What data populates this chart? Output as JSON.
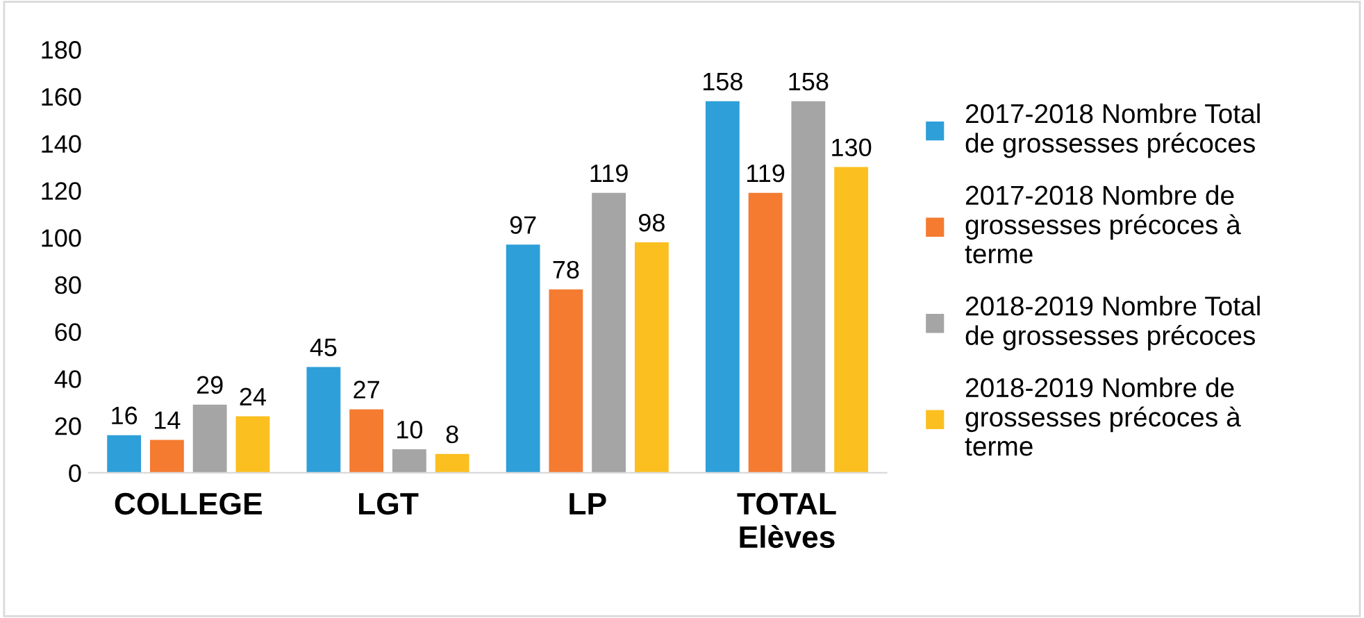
{
  "chart_data": {
    "type": "bar",
    "categories": [
      "COLLEGE",
      "LGT",
      "LP",
      "TOTAL\nElèves"
    ],
    "series": [
      {
        "name": "2017-2018 Nombre Total\nde grossesses précoces",
        "color": "#2e9fd8",
        "values": [
          16,
          45,
          97,
          158
        ]
      },
      {
        "name": "2017-2018 Nombre de\ngrossesses précoces à\nterme",
        "color": "#f47b30",
        "values": [
          14,
          27,
          78,
          119
        ]
      },
      {
        "name": "2018-2019 Nombre Total\nde grossesses précoces",
        "color": "#a5a5a5",
        "values": [
          29,
          10,
          119,
          158
        ]
      },
      {
        "name": "2018-2019 Nombre de\ngrossesses précoces à\nterme",
        "color": "#fbbf1f",
        "values": [
          24,
          8,
          98,
          130
        ]
      }
    ],
    "ylim": [
      0,
      180
    ],
    "yticks": [
      0,
      20,
      40,
      60,
      80,
      100,
      120,
      140,
      160,
      180
    ],
    "grid": false,
    "legend": "right",
    "data_labels": true
  }
}
